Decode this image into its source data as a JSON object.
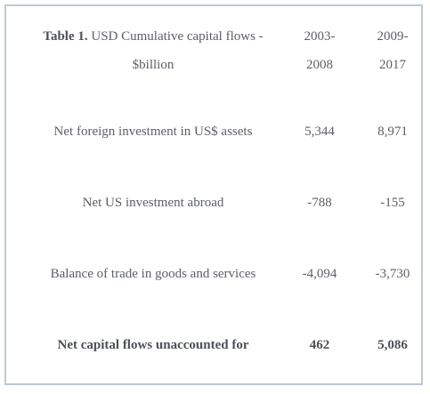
{
  "table": {
    "caption_prefix": "Table 1.",
    "caption_text": "USD Cumulative capital flows - $billion",
    "col1_header": "2003-2008",
    "col1_header_a": "2003-",
    "col1_header_b": "2008",
    "col2_header": "2009-2017",
    "col2_header_a": "2009-",
    "col2_header_b": "2017",
    "rows": [
      {
        "label": "Net foreign investment in US$ assets",
        "v1": "5,344",
        "v2": "8,971"
      },
      {
        "label": "Net US investment abroad",
        "v1": "-788",
        "v2": "-155"
      },
      {
        "label": "Balance of trade in goods and services",
        "v1": "-4,094",
        "v2": "-3,730"
      },
      {
        "label": "Net capital flows unaccounted for",
        "v1": "462",
        "v2": "5,086"
      }
    ]
  }
}
